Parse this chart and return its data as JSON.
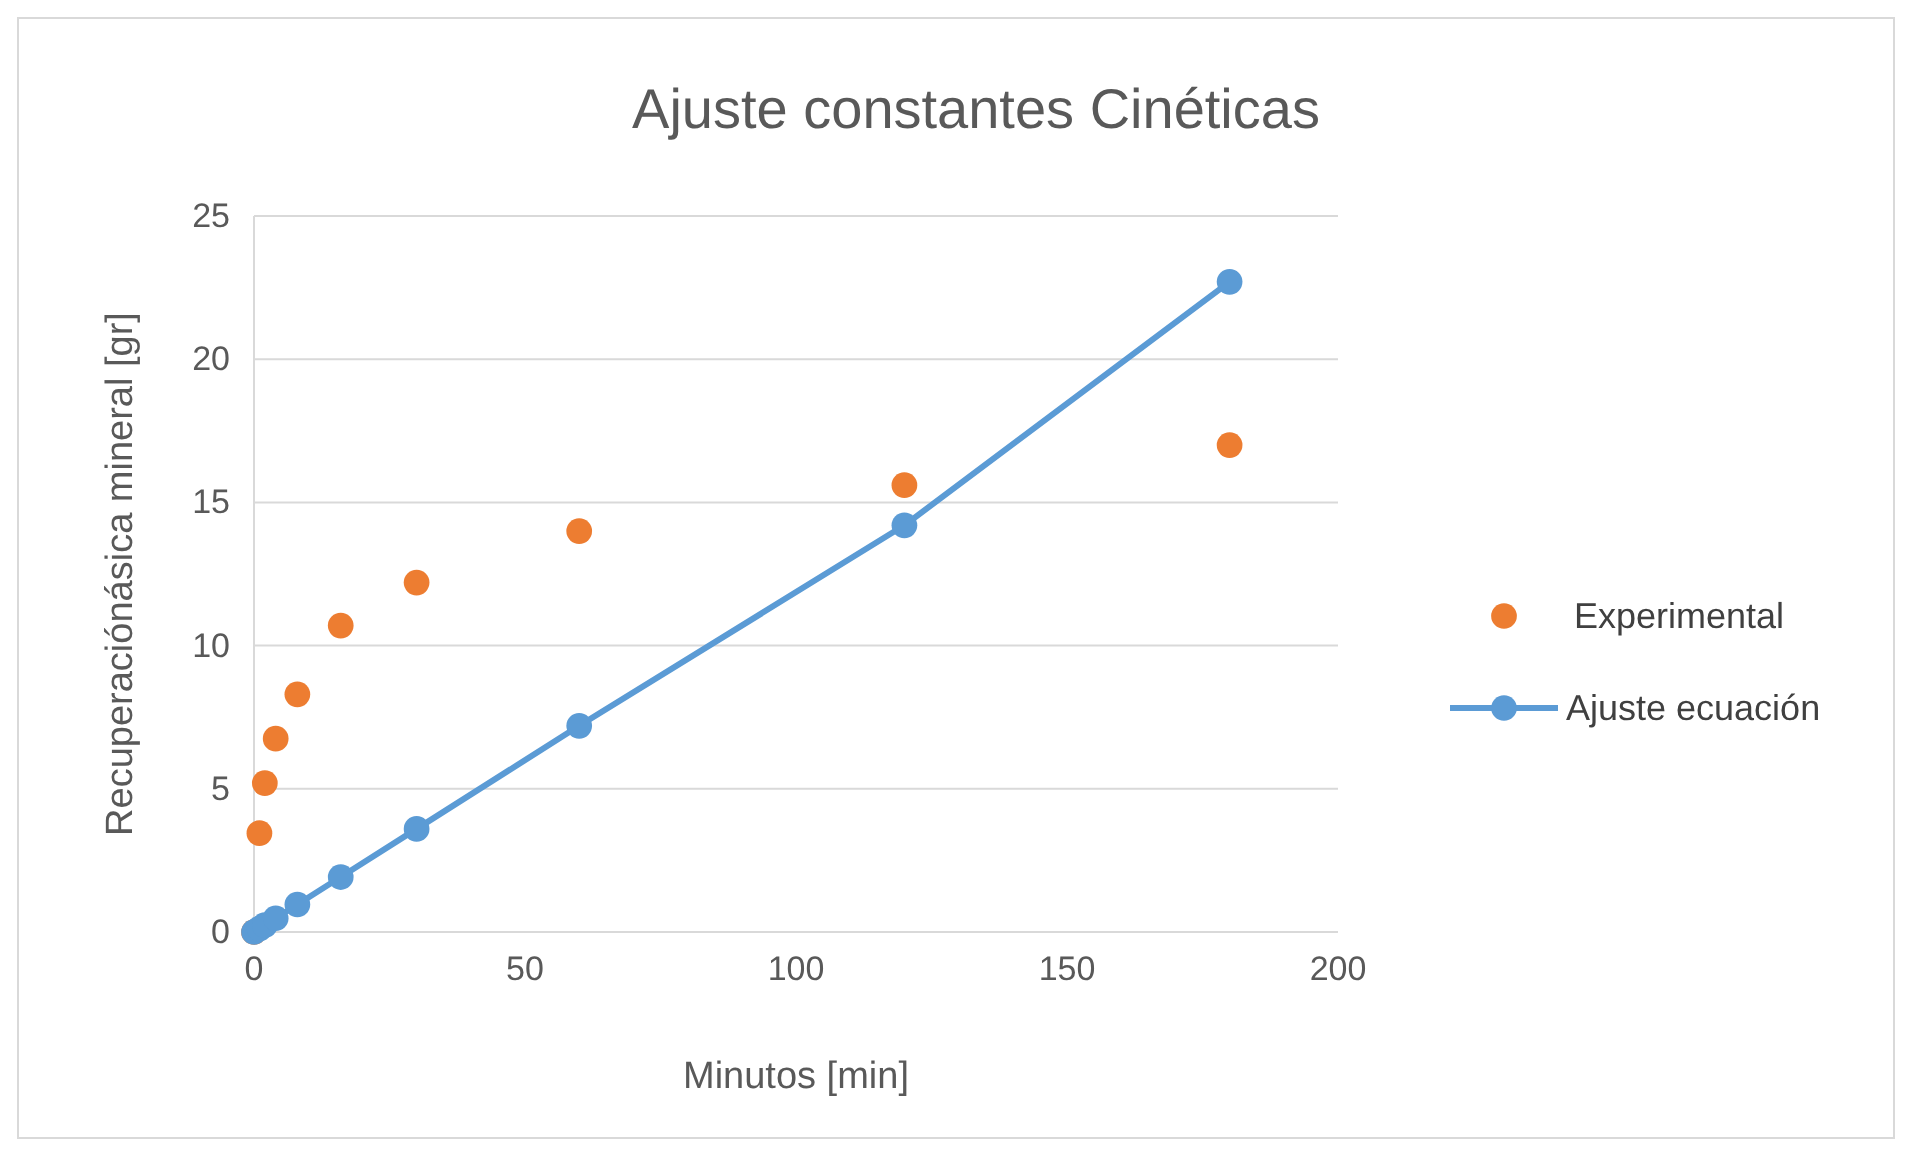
{
  "chart_data": {
    "type": "scatter",
    "title": "Ajuste constantes Cinéticas",
    "xlabel": "Minutos [min]",
    "ylabel": "Recuperaciónásica mineral [gr]",
    "xlim": [
      0,
      200
    ],
    "xticks": [
      0,
      50,
      100,
      150,
      200
    ],
    "ylim": [
      0,
      25
    ],
    "yticks": [
      0,
      5,
      10,
      15,
      20,
      25
    ],
    "grid": "y",
    "legend": "right",
    "marker": "circle",
    "series": [
      {
        "name": "Experimental",
        "color": "#ed7d31",
        "x": [
          0,
          1,
          2,
          4,
          8,
          16,
          30,
          60,
          120,
          180
        ],
        "values": [
          0,
          3.45,
          5.2,
          6.75,
          8.3,
          10.7,
          12.2,
          14.0,
          15.6,
          17.0
        ]
      },
      {
        "name": "Ajuste ecuación",
        "type": "line",
        "color": "#5b9bd5",
        "x": [
          0,
          1,
          2,
          4,
          8,
          16,
          30,
          60,
          120,
          180
        ],
        "values": [
          0,
          0.12,
          0.24,
          0.48,
          0.96,
          1.92,
          3.6,
          7.2,
          14.2,
          22.7
        ]
      }
    ]
  }
}
